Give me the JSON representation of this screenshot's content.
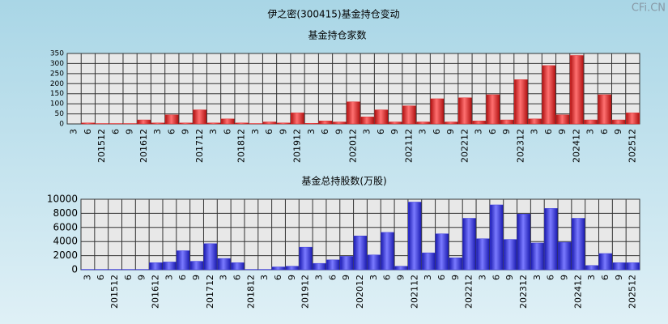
{
  "title": "伊之密(300415)基金持仓变动",
  "watermark": "CFi.CN",
  "chart_data": [
    {
      "type": "bar",
      "title": "基金持仓家数",
      "color": "#e03030",
      "categories": [
        "3",
        "6",
        "201512",
        "6",
        "9",
        "201612",
        "3",
        "6",
        "9",
        "201712",
        "3",
        "6",
        "201812",
        "3",
        "6",
        "9",
        "201912",
        "3",
        "6",
        "9",
        "202012",
        "3",
        "6",
        "9",
        "202112",
        "3",
        "6",
        "9",
        "202212",
        "3",
        "6",
        "9",
        "202312",
        "3",
        "6",
        "9",
        "202412",
        "3",
        "6",
        "9",
        "202512"
      ],
      "values": [
        0,
        5,
        2,
        2,
        2,
        20,
        5,
        45,
        5,
        70,
        5,
        25,
        5,
        2,
        10,
        5,
        55,
        3,
        15,
        10,
        110,
        35,
        70,
        10,
        90,
        10,
        125,
        10,
        130,
        15,
        145,
        20,
        220,
        25,
        290,
        45,
        340,
        20,
        145,
        20,
        55
      ],
      "ylim": [
        0,
        350
      ],
      "yticks": [
        0,
        50,
        100,
        150,
        200,
        250,
        300,
        350
      ],
      "grid": true
    },
    {
      "type": "bar",
      "title": "基金总持股数(万股)",
      "color": "#3a3ae0",
      "categories": [
        "3",
        "6",
        "201512",
        "6",
        "9",
        "201612",
        "3",
        "6",
        "9",
        "201712",
        "3",
        "6",
        "201812",
        "3",
        "6",
        "9",
        "201912",
        "3",
        "6",
        "9",
        "202012",
        "3",
        "6",
        "9",
        "202112",
        "3",
        "6",
        "9",
        "202212",
        "3",
        "6",
        "9",
        "202312",
        "3",
        "6",
        "9",
        "202412",
        "3",
        "6",
        "9",
        "202512"
      ],
      "values": [
        50,
        50,
        50,
        50,
        50,
        1000,
        1100,
        2700,
        1200,
        3700,
        1600,
        1000,
        50,
        50,
        400,
        500,
        3200,
        900,
        1400,
        1900,
        4800,
        2100,
        5300,
        500,
        9600,
        2400,
        5100,
        1700,
        7300,
        4400,
        9200,
        4300,
        7900,
        3800,
        8700,
        3900,
        7300,
        600,
        2300,
        1000,
        1000
      ],
      "ylim": [
        0,
        10000
      ],
      "yticks": [
        0,
        2000,
        4000,
        6000,
        8000,
        10000
      ],
      "grid": true
    }
  ]
}
